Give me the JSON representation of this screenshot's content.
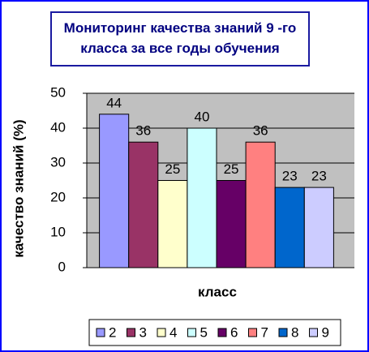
{
  "chart_data": {
    "type": "bar",
    "title": "Мониторинг качества знаний 9 -го класса за все годы обучения",
    "y_label": "качество знаний (%)",
    "x_label": "класс",
    "categories": [
      null
    ],
    "series": [
      {
        "name": "2",
        "color": "#9999ff",
        "values": [
          44
        ]
      },
      {
        "name": "3",
        "color": "#993366",
        "values": [
          36
        ]
      },
      {
        "name": "4",
        "color": "#ffffcc",
        "values": [
          25
        ]
      },
      {
        "name": "5",
        "color": "#ccffff",
        "values": [
          40
        ]
      },
      {
        "name": "6",
        "color": "#660066",
        "values": [
          25
        ]
      },
      {
        "name": "7",
        "color": "#ff8080",
        "values": [
          36
        ]
      },
      {
        "name": "8",
        "color": "#0066cc",
        "values": [
          23
        ]
      },
      {
        "name": "9",
        "color": "#ccccff",
        "values": [
          23
        ]
      }
    ],
    "ylim": [
      0,
      50
    ],
    "yticks": [
      0,
      10,
      20,
      30,
      40,
      50
    ],
    "grid": true,
    "legend": "bottom"
  }
}
